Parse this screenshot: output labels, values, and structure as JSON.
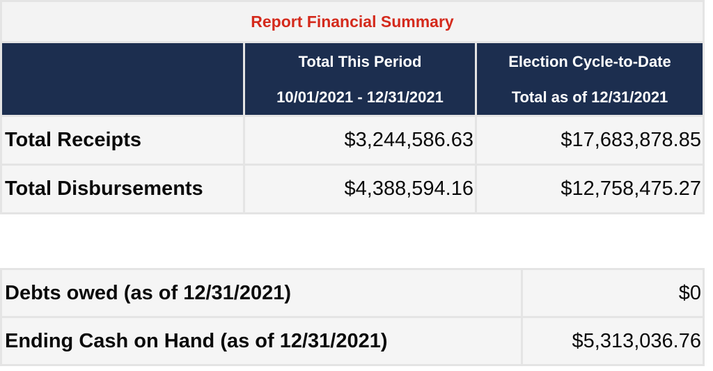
{
  "summary": {
    "title": "Report Financial Summary",
    "columns": [
      {
        "line1": "Total This Period",
        "line2": "10/01/2021 - 12/31/2021"
      },
      {
        "line1": "Election Cycle-to-Date",
        "line2": "Total as of 12/31/2021"
      }
    ],
    "rows": [
      {
        "label": "Total Receipts",
        "period": "$3,244,586.63",
        "cycle": "$17,683,878.85"
      },
      {
        "label": "Total Disbursements",
        "period": "$4,388,594.16",
        "cycle": "$12,758,475.27"
      }
    ]
  },
  "balances": {
    "rows": [
      {
        "label": "Debts owed (as of 12/31/2021)",
        "value": "$0"
      },
      {
        "label": "Ending Cash on Hand (as of 12/31/2021)",
        "value": "$5,313,036.76"
      }
    ]
  },
  "colors": {
    "header_background": "#1c2e4f",
    "title_text": "#d42a1c",
    "cell_background": "#f5f5f5",
    "grid": "#e4e4e4"
  }
}
